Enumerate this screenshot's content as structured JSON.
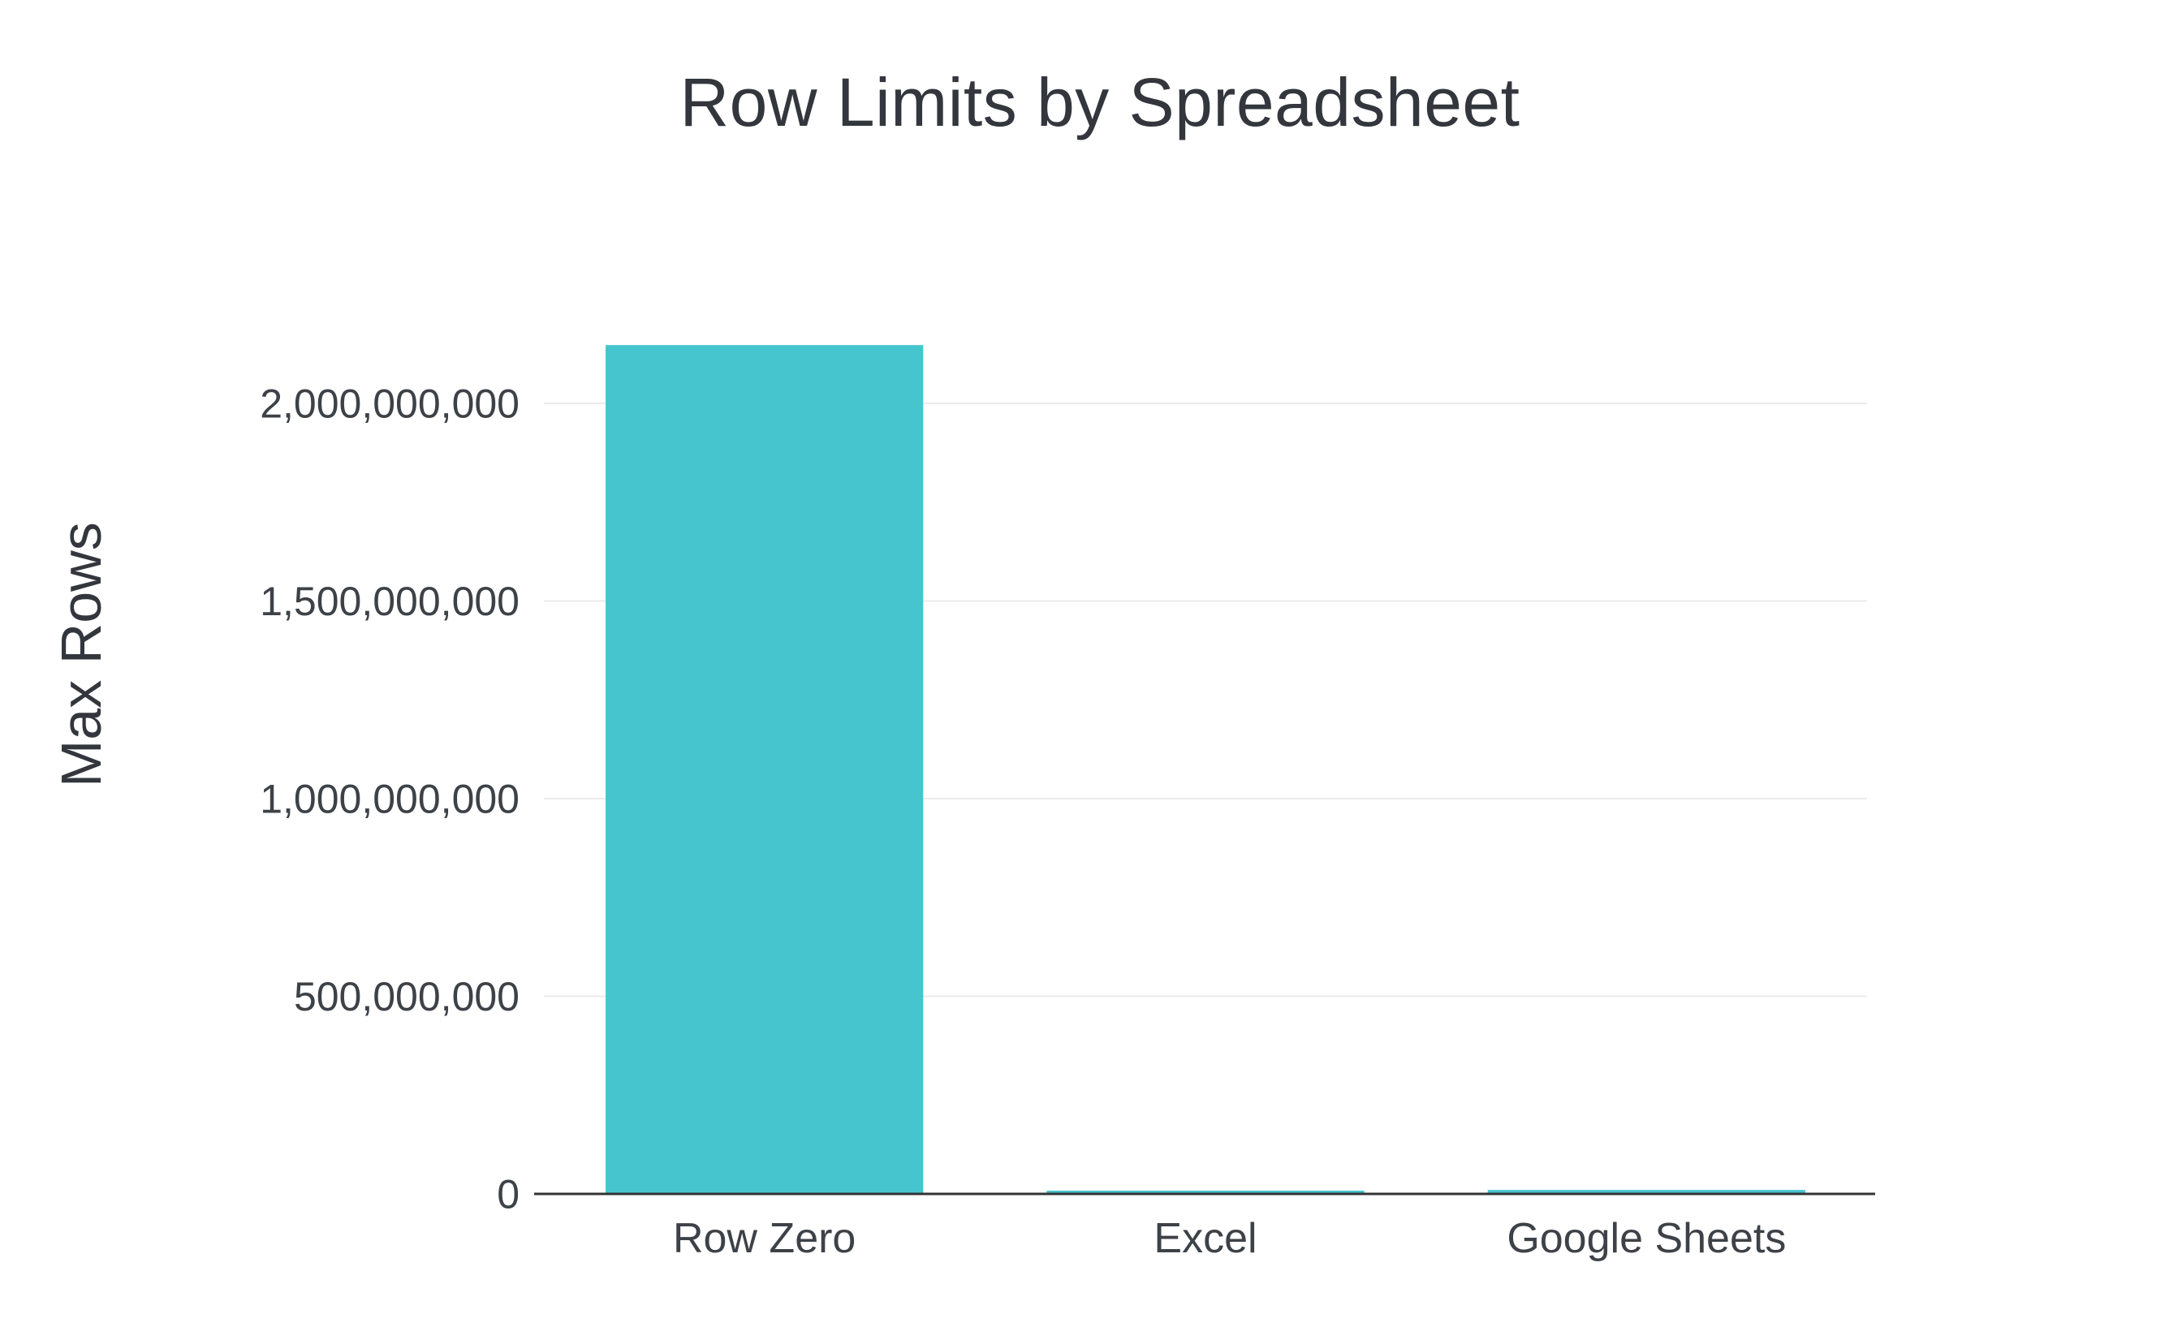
{
  "page": {
    "background": "#ffffff"
  },
  "chart_data": {
    "type": "bar",
    "title": "Row Limits by Spreadsheet",
    "xlabel": "",
    "ylabel": "Max Rows",
    "categories": [
      "Row Zero",
      "Excel",
      "Google Sheets"
    ],
    "values": [
      2147483648,
      1048576,
      10000000
    ],
    "ylim": [
      0,
      2200000000
    ],
    "yticks": [
      0,
      500000000,
      1000000000,
      1500000000,
      2000000000
    ],
    "ytick_labels": [
      "0",
      "500,000,000",
      "1,000,000,000",
      "1,500,000,000",
      "2,000,000,000"
    ],
    "grid": true,
    "legend": "none",
    "bar_color": "#46c5cf",
    "axis_color": "#333333",
    "grid_color": "#ebebeb",
    "text_color": "#3d4248"
  }
}
